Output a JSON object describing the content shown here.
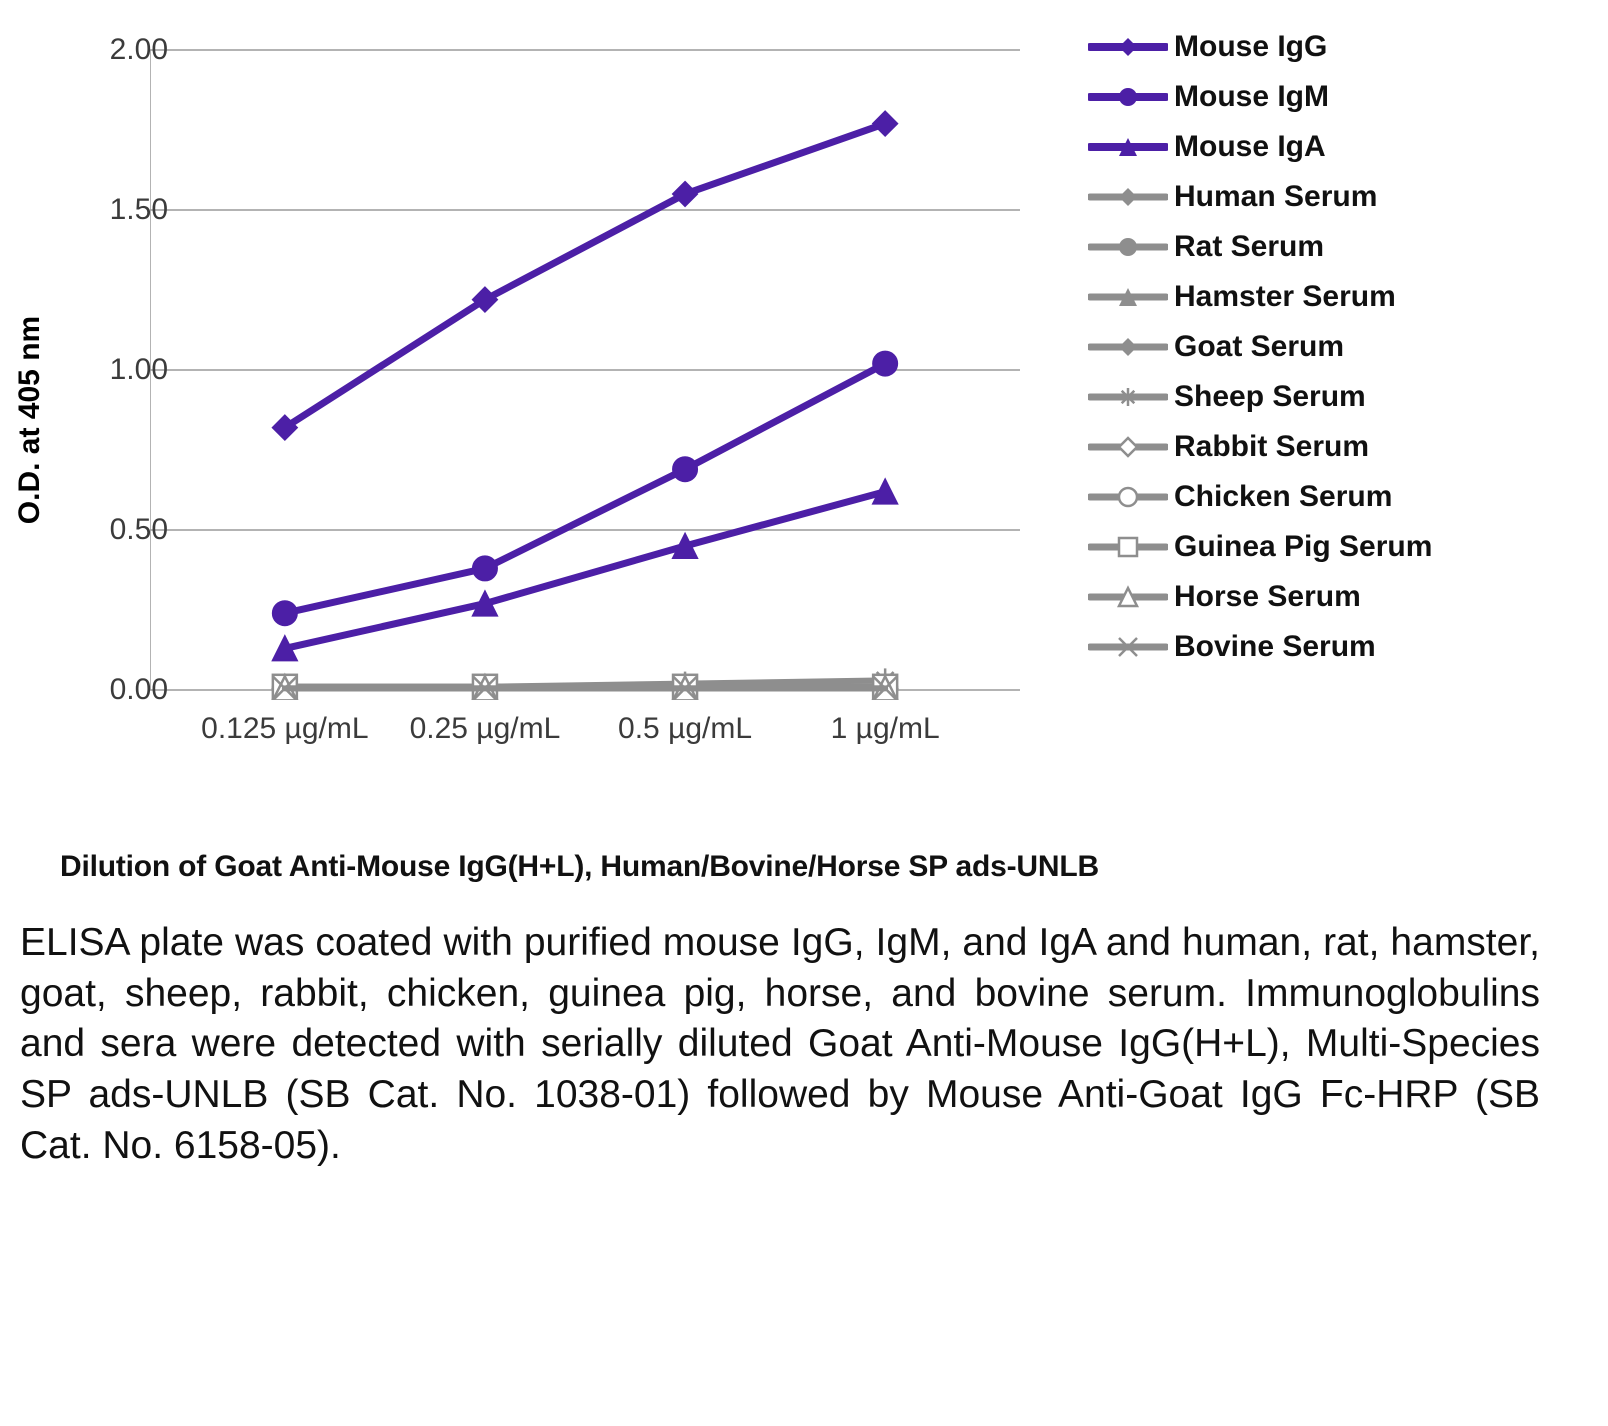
{
  "chart": {
    "type": "line",
    "ylabel": "O.D. at 405 nm",
    "ylim": [
      0,
      2.0
    ],
    "yticks": [
      0,
      0.5,
      1.0,
      1.5,
      2.0
    ],
    "ytick_labels": [
      "0.00",
      "0.50",
      "1.00",
      "1.50",
      "2.00"
    ],
    "categories": [
      "0.125 µg/mL",
      "0.25 µg/mL",
      "0.5 µg/mL",
      "1 µg/mL"
    ],
    "grid_color": "#9a9a9a",
    "axis_color": "#9a9a9a",
    "background_color": "#ffffff",
    "line_width": 7,
    "gray_line_width": 6,
    "marker_size": 12,
    "series": [
      {
        "name": "Mouse IgG",
        "color": "#4c1fa6",
        "marker": "diamond",
        "values": [
          0.82,
          1.22,
          1.55,
          1.77
        ]
      },
      {
        "name": "Mouse IgM",
        "color": "#4c1fa6",
        "marker": "circle",
        "values": [
          0.24,
          0.38,
          0.69,
          1.02
        ]
      },
      {
        "name": "Mouse IgA",
        "color": "#4c1fa6",
        "marker": "triangle",
        "values": [
          0.13,
          0.27,
          0.45,
          0.62
        ]
      },
      {
        "name": "Human Serum",
        "color": "#8e8e8e",
        "marker": "diamond",
        "values": [
          0.01,
          0.01,
          0.01,
          0.01
        ]
      },
      {
        "name": "Rat Serum",
        "color": "#8e8e8e",
        "marker": "circle",
        "values": [
          0.005,
          0.005,
          0.005,
          0.005
        ]
      },
      {
        "name": "Hamster Serum",
        "color": "#8e8e8e",
        "marker": "triangle",
        "values": [
          0.01,
          0.01,
          0.01,
          0.01
        ]
      },
      {
        "name": "Goat Serum",
        "color": "#8e8e8e",
        "marker": "diamond",
        "values": [
          0.005,
          0.005,
          0.005,
          0.005
        ]
      },
      {
        "name": "Sheep Serum",
        "color": "#8e8e8e",
        "marker": "asterisk",
        "values": [
          0.01,
          0.01,
          0.02,
          0.03
        ]
      },
      {
        "name": "Rabbit Serum",
        "color": "#8e8e8e",
        "marker": "diamond-open",
        "values": [
          0.005,
          0.005,
          0.005,
          0.005
        ]
      },
      {
        "name": "Chicken Serum",
        "color": "#8e8e8e",
        "marker": "circle-open",
        "values": [
          0.005,
          0.005,
          0.005,
          0.005
        ]
      },
      {
        "name": "Guinea Pig Serum",
        "color": "#8e8e8e",
        "marker": "square-open",
        "values": [
          0.01,
          0.01,
          0.01,
          0.01
        ]
      },
      {
        "name": "Horse Serum",
        "color": "#8e8e8e",
        "marker": "triangle-open",
        "values": [
          0.005,
          0.005,
          0.005,
          0.005
        ]
      },
      {
        "name": "Bovine Serum",
        "color": "#8e8e8e",
        "marker": "cross",
        "values": [
          0.005,
          0.005,
          0.005,
          0.005
        ]
      }
    ]
  },
  "xaxis_title": "Dilution of Goat Anti-Mouse IgG(H+L), Human/Bovine/Horse SP ads-UNLB",
  "description": "ELISA plate was coated with purified mouse IgG, IgM, and IgA and human, rat, hamster, goat, sheep, rabbit, chicken, guinea pig, horse, and bovine serum.  Immunoglobulins and sera were detected with serially diluted Goat Anti-Mouse IgG(H+L), Multi-Species SP ads-UNLB (SB Cat. No. 1038-01) followed by Mouse Anti-Goat IgG Fc-HRP (SB Cat. No. 6158-05)."
}
